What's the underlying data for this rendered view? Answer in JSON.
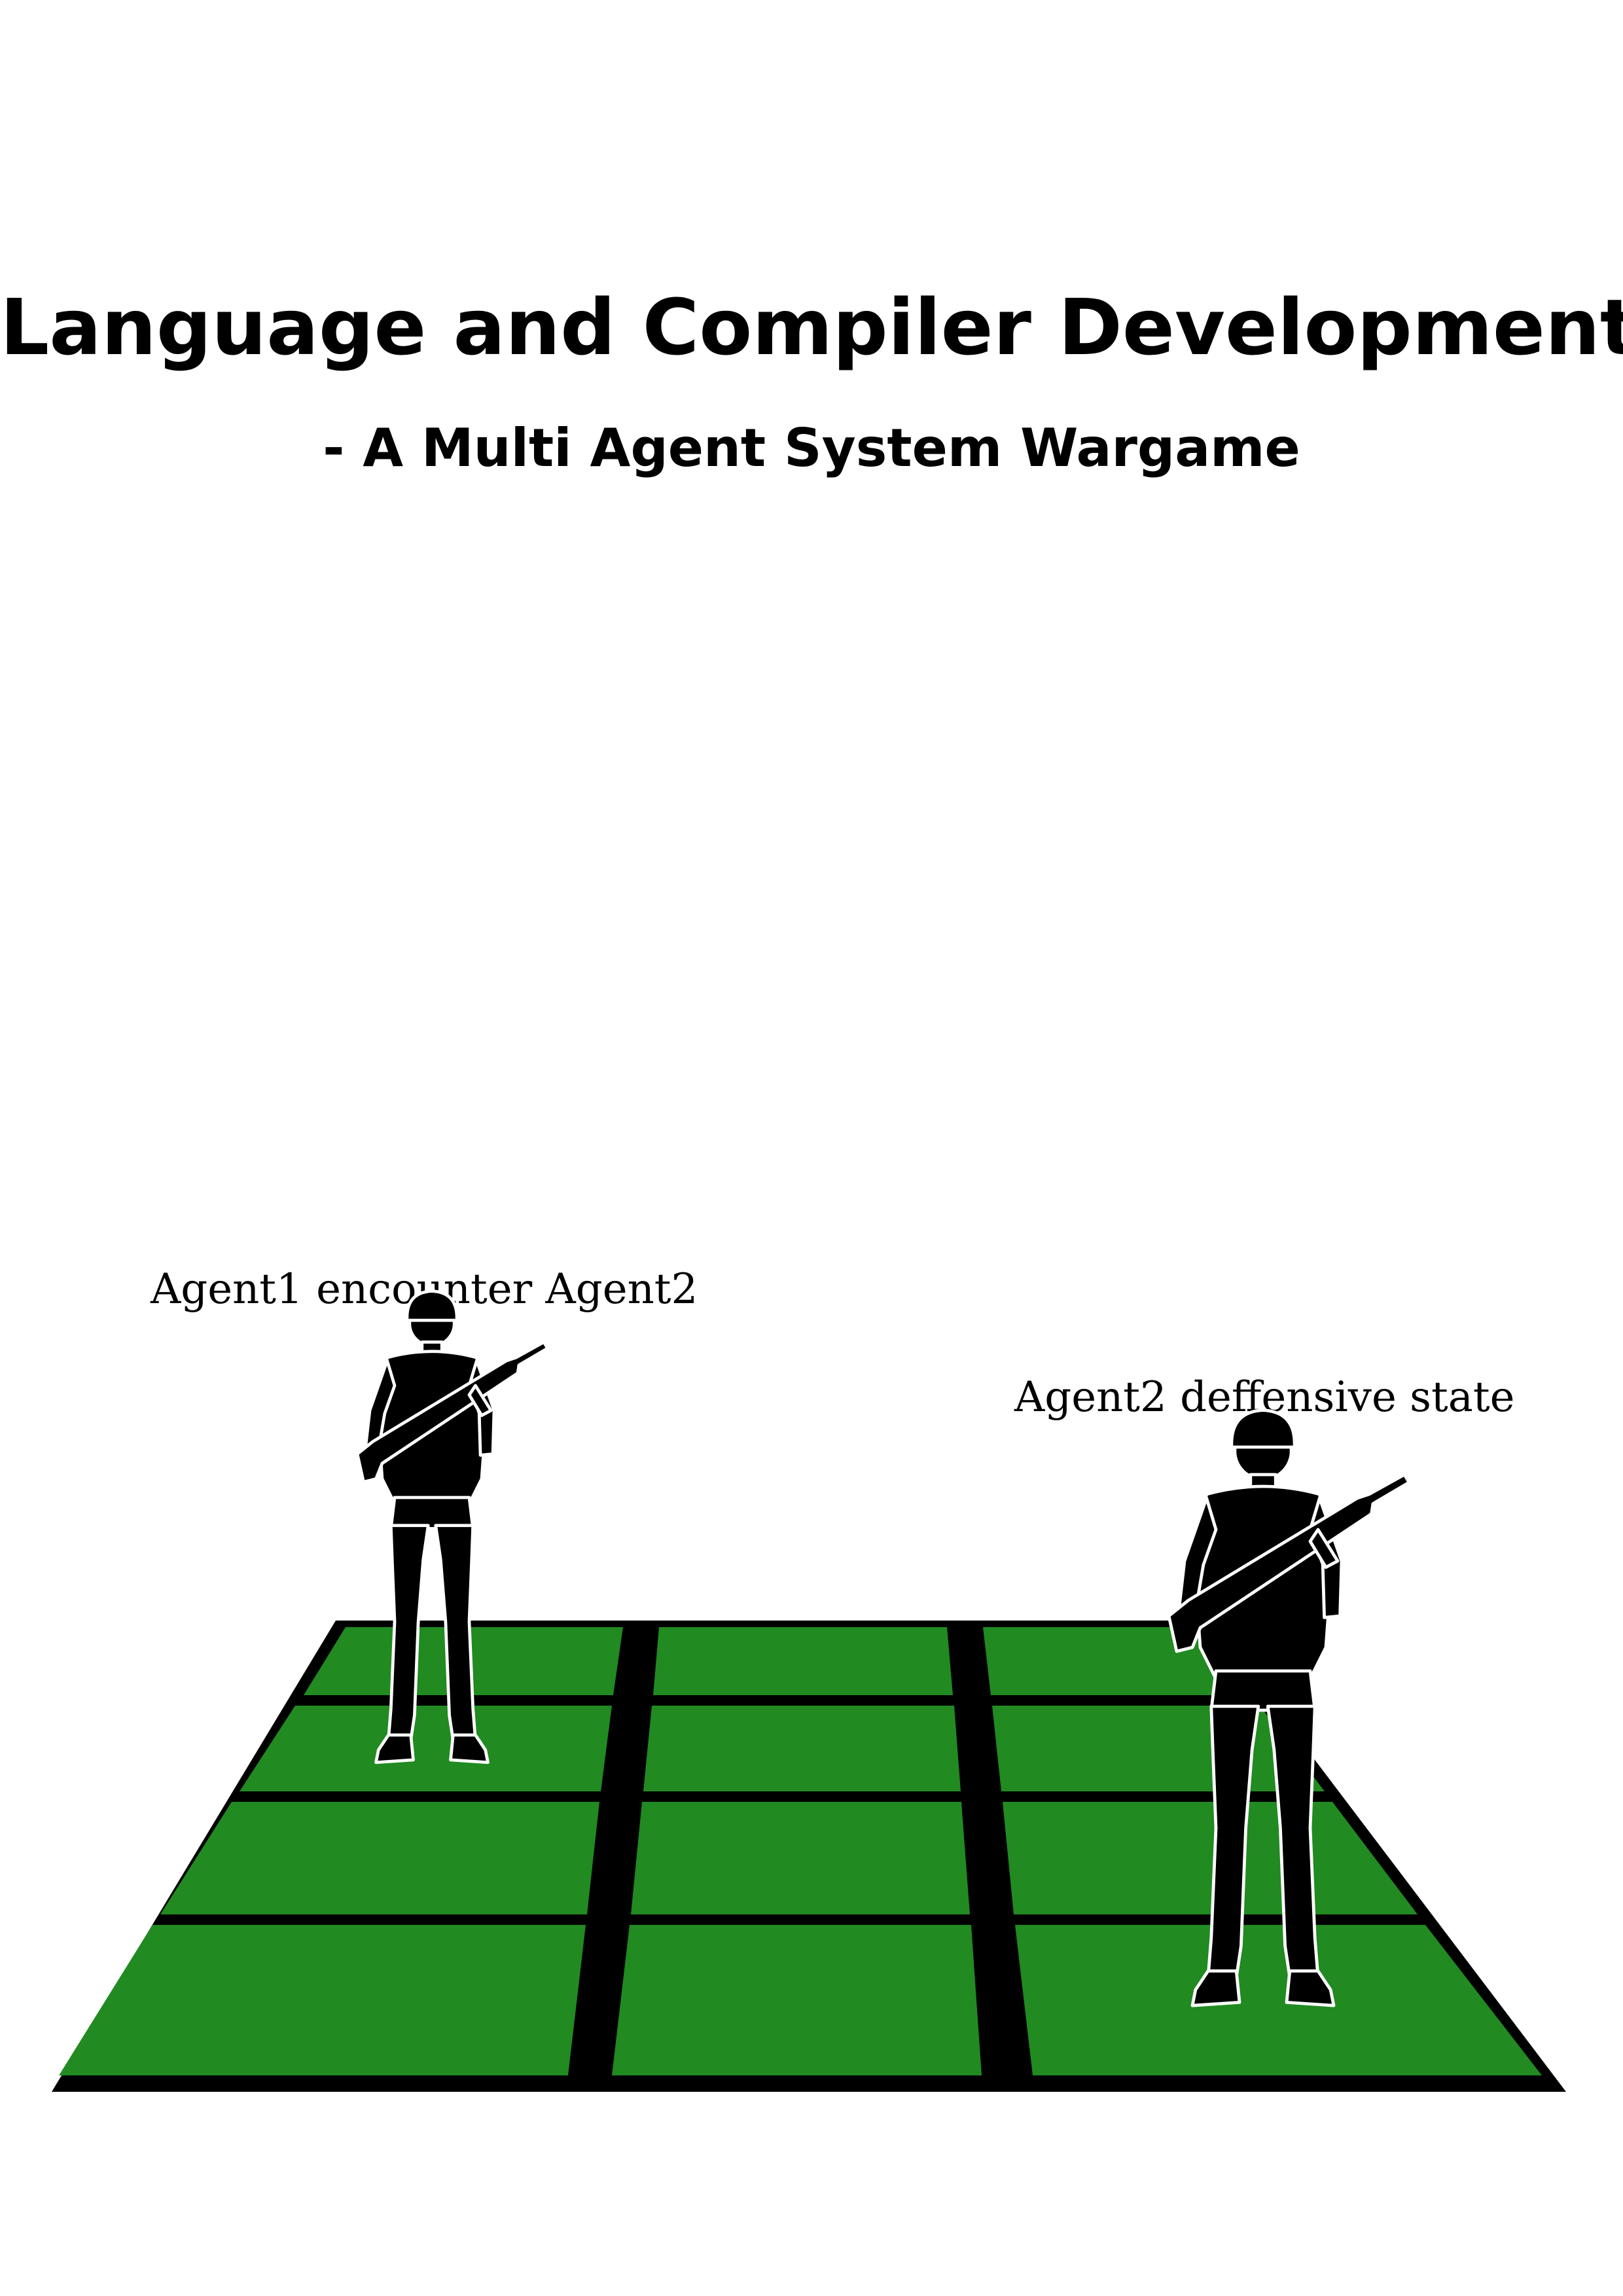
{
  "title": "Language and Compiler Development",
  "subtitle": "- A Multi Agent System Wargame",
  "captions": {
    "agent1": "Agent1 encounter Agent2",
    "agent2": "Agent2 deffensive state"
  },
  "board": {
    "columns": 3,
    "rows": 4,
    "tile_color": "#218a21",
    "line_color": "#000000"
  },
  "figures": {
    "icon": "soldier-silhouette-icon",
    "color": "#000000",
    "outline": "#ffffff"
  }
}
